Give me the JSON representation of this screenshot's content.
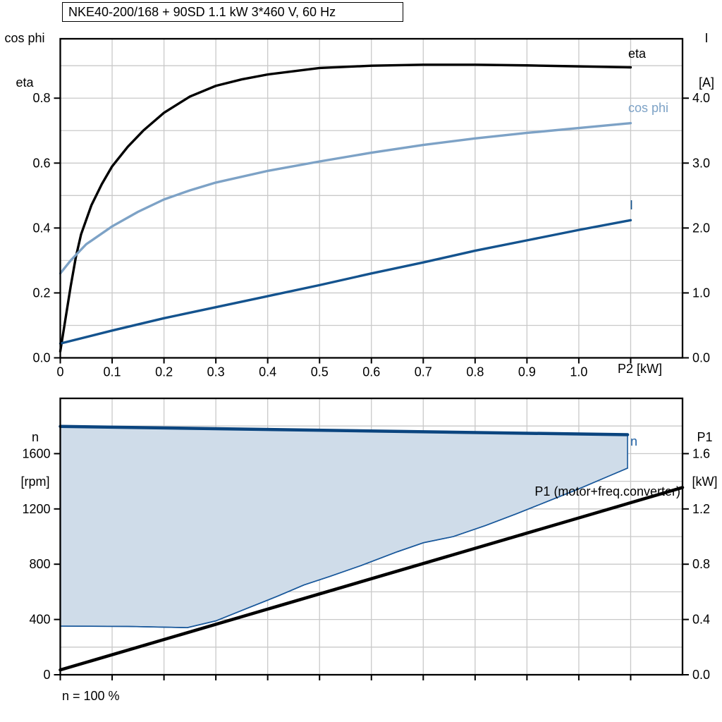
{
  "title_box": {
    "text": "NKE40-200/168 + 90SD   1.1 kW   3*460 V, 60 Hz"
  },
  "top_panel": {
    "left_axis_title_line1": "cos phi",
    "left_axis_title_line2": "eta",
    "right_axis_title_line1": "I",
    "right_axis_title_line2": "[A]",
    "x_axis_label": "P2 [kW]",
    "curve_labels": {
      "eta": "eta",
      "cos_phi": "cos phi",
      "current": "I"
    }
  },
  "bottom_panel": {
    "left_axis_title_line1": "n",
    "left_axis_title_line2": "[rpm]",
    "right_axis_title_line1": "P1",
    "right_axis_title_line2": "[kW]",
    "curve_labels": {
      "n": "n",
      "p1": "P1 (motor+freq.converter)"
    },
    "footnote": "n = 100 %"
  },
  "colors": {
    "eta": "#000000",
    "cos_phi": "#7da2c6",
    "current": "#14538e",
    "speed": "#0b457f",
    "envelope_fill": "#cfdce9",
    "envelope_border": "#19589b",
    "p1_line": "#000000",
    "grid": "#c9c9c9",
    "frame": "#000000",
    "n_label": "#1d5fa3"
  },
  "chart_data": [
    {
      "id": "top",
      "type": "line",
      "title": "NKE40-200/168 + 90SD   1.1 kW   3*460 V, 60 Hz",
      "x_axis": {
        "label": "P2 [kW]",
        "min": 0,
        "max": 1.2,
        "grid_step": 0.1,
        "tick_values": [
          0,
          0.1,
          0.2,
          0.3,
          0.4,
          0.5,
          0.6,
          0.7,
          0.8,
          0.9,
          1.0,
          1.1
        ],
        "tick_labels": [
          "0",
          "0.1",
          "0.2",
          "0.3",
          "0.4",
          "0.5",
          "0.6",
          "0.7",
          "0.8",
          "0.9",
          "1.0",
          ""
        ]
      },
      "y_left": {
        "label": "cos phi, eta",
        "min": 0,
        "max": 0.983,
        "grid_step": 0.1,
        "tick_values": [
          0,
          0.2,
          0.4,
          0.6,
          0.8
        ],
        "tick_labels": [
          "0.0",
          "0.2",
          "0.4",
          "0.6",
          "0.8"
        ]
      },
      "y_right": {
        "label": "I [A]",
        "min": 0,
        "max": 4.915,
        "tick_values": [
          0,
          1,
          2,
          3,
          4
        ],
        "tick_labels": [
          "0.0",
          "1.0",
          "2.0",
          "3.0",
          "4.0"
        ]
      },
      "legend_position": "right-of-curves",
      "grid": true,
      "series": [
        {
          "name": "eta",
          "axis": "left",
          "color": "#000000",
          "width": 3.4,
          "x": [
            0,
            0.01,
            0.02,
            0.03,
            0.04,
            0.06,
            0.08,
            0.1,
            0.13,
            0.16,
            0.2,
            0.25,
            0.3,
            0.35,
            0.4,
            0.5,
            0.6,
            0.7,
            0.8,
            0.9,
            1.0,
            1.1
          ],
          "y": [
            0.02,
            0.12,
            0.22,
            0.31,
            0.38,
            0.47,
            0.535,
            0.59,
            0.65,
            0.7,
            0.755,
            0.805,
            0.838,
            0.858,
            0.873,
            0.893,
            0.9,
            0.903,
            0.903,
            0.901,
            0.898,
            0.895
          ]
        },
        {
          "name": "cos phi",
          "axis": "left",
          "color": "#7da2c6",
          "width": 3.4,
          "x": [
            0,
            0.02,
            0.05,
            0.1,
            0.15,
            0.2,
            0.25,
            0.3,
            0.4,
            0.5,
            0.6,
            0.7,
            0.8,
            0.9,
            1.0,
            1.1
          ],
          "y": [
            0.26,
            0.3,
            0.35,
            0.405,
            0.45,
            0.488,
            0.516,
            0.54,
            0.576,
            0.605,
            0.632,
            0.656,
            0.676,
            0.693,
            0.708,
            0.723
          ]
        },
        {
          "name": "I",
          "axis": "right",
          "color": "#14538e",
          "width": 3.4,
          "x": [
            0,
            0.1,
            0.2,
            0.3,
            0.4,
            0.5,
            0.6,
            0.7,
            0.8,
            0.9,
            1.0,
            1.1
          ],
          "y": [
            0.22,
            0.42,
            0.61,
            0.78,
            0.95,
            1.12,
            1.3,
            1.47,
            1.65,
            1.81,
            1.97,
            2.12
          ]
        }
      ]
    },
    {
      "id": "bottom",
      "type": "line+area",
      "title": "",
      "x_axis": {
        "label": "",
        "min": 0,
        "max": 1.2,
        "grid_step": 0.1,
        "tick_values": [
          0,
          0.1,
          0.2,
          0.3,
          0.4,
          0.5,
          0.6,
          0.7,
          0.8,
          0.9,
          1.0,
          1.1
        ],
        "tick_labels": [
          "",
          "",
          "",
          "",
          "",
          "",
          "",
          "",
          "",
          "",
          "",
          ""
        ]
      },
      "y_left": {
        "label": "n [rpm]",
        "min": 0,
        "max": 2000,
        "grid_step": 200,
        "tick_values": [
          0,
          400,
          800,
          1200,
          1600
        ],
        "tick_labels": [
          "0",
          "400",
          "800",
          "1200",
          "1600"
        ]
      },
      "y_right": {
        "label": "P1 [kW]",
        "min": 0,
        "max": 2.0,
        "tick_values": [
          0,
          0.4,
          0.8,
          1.2,
          1.6
        ],
        "tick_labels": [
          "0.0",
          "0.4",
          "0.8",
          "1.2",
          "1.6"
        ]
      },
      "grid": true,
      "area": {
        "upper": "n",
        "lower": "n_min",
        "fill": "#cfdce9",
        "border": "#19589b",
        "border_width": 1.6
      },
      "series": [
        {
          "name": "n",
          "axis": "left",
          "color": "#0b457f",
          "width": 4.5,
          "x": [
            0,
            1.094
          ],
          "y": [
            1797,
            1737
          ]
        },
        {
          "name": "n_min",
          "axis": "left",
          "color": "#19589b",
          "width": 1.6,
          "x": [
            0,
            0.13,
            0.245,
            0.3,
            0.36,
            0.42,
            0.47,
            0.52,
            0.58,
            0.65,
            0.7,
            0.758,
            0.82,
            0.88,
            0.94,
            1.0,
            1.05,
            1.094
          ],
          "y": [
            352,
            350,
            341,
            390,
            480,
            570,
            650,
            712,
            790,
            890,
            955,
            1000,
            1080,
            1165,
            1255,
            1345,
            1425,
            1495
          ]
        },
        {
          "name": "P1",
          "axis": "right",
          "color": "#000000",
          "width": 4.5,
          "x": [
            0,
            1.2
          ],
          "y": [
            0.035,
            1.355
          ]
        }
      ]
    }
  ]
}
